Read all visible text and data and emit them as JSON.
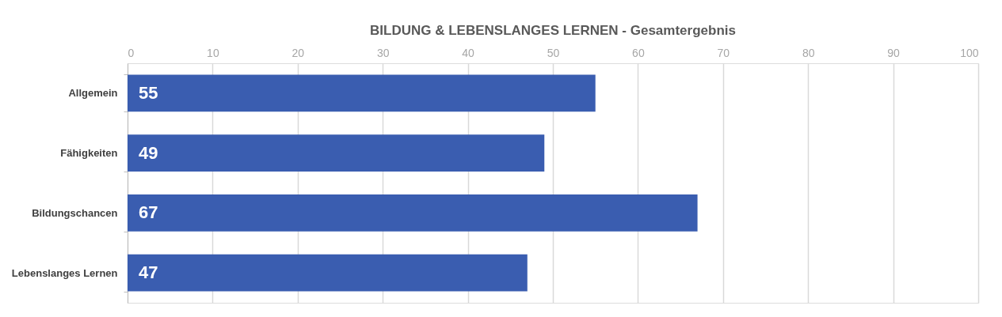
{
  "chart_data": {
    "type": "bar",
    "orientation": "horizontal",
    "title": "BILDUNG & LEBENSLANGES LERNEN - Gesamtergebnis",
    "categories": [
      "Allgemein",
      "Fähigkeiten",
      "Bildungschancen",
      "Lebenslanges Lernen"
    ],
    "values": [
      55,
      49,
      67,
      47
    ],
    "color": "#3a5db0",
    "xlim": [
      0,
      100
    ],
    "xticks": [
      0,
      10,
      20,
      30,
      40,
      50,
      60,
      70,
      80,
      90,
      100
    ],
    "grid": "x",
    "data_labels": true
  }
}
